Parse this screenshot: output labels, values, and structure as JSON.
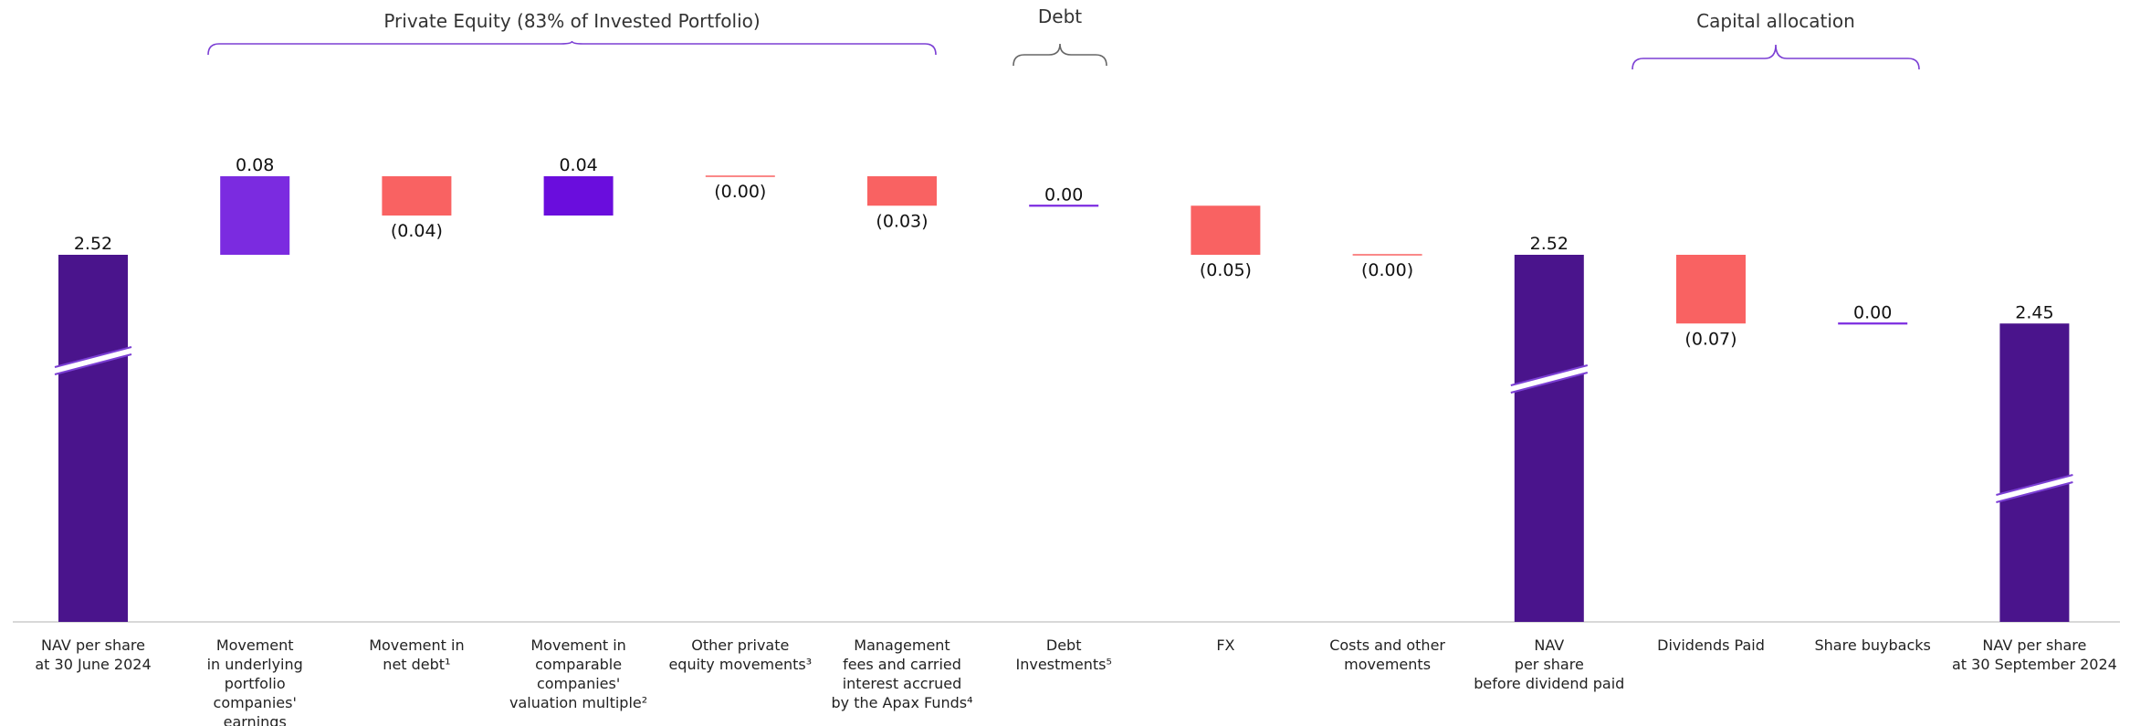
{
  "chart_data": {
    "type": "waterfall",
    "categories": [
      [
        "NAV per share",
        "at 30 June 2024"
      ],
      [
        "Movement",
        "in underlying",
        "portfolio",
        "companies'",
        "earnings"
      ],
      [
        "Movement in",
        "net debt¹"
      ],
      [
        "Movement in",
        "comparable",
        "companies'",
        "valuation multiple²"
      ],
      [
        "Other private",
        "equity movements³"
      ],
      [
        "Management",
        "fees and carried",
        "interest accrued",
        "by the Apax Funds⁴"
      ],
      [
        "Debt",
        "Investments⁵"
      ],
      [
        "FX"
      ],
      [
        "Costs and other",
        "movements"
      ],
      [
        "NAV",
        "per share",
        "before dividend paid"
      ],
      [
        "Dividends Paid"
      ],
      [
        "Share buybacks"
      ],
      [
        "NAV per share",
        "at 30 September 2024"
      ]
    ],
    "kinds": [
      "total",
      "delta",
      "delta",
      "delta",
      "delta",
      "delta",
      "delta",
      "delta",
      "delta",
      "total",
      "delta",
      "delta",
      "total"
    ],
    "values": [
      2.52,
      0.08,
      -0.04,
      0.04,
      -0.0,
      -0.03,
      0.0,
      -0.05,
      -0.0,
      2.52,
      -0.07,
      0.0,
      2.45
    ],
    "labels": [
      "2.52",
      "0.08",
      "(0.04)",
      "0.04",
      "(0.00)",
      "(0.03)",
      "0.00",
      "(0.05)",
      "(0.00)",
      "2.52",
      "(0.07)",
      "0.00",
      "2.45"
    ],
    "groups": [
      {
        "label": "Private Equity (83% of Invested Portfolio)",
        "from": 1,
        "to": 5
      },
      {
        "label": "Debt",
        "from": 6,
        "to": 6
      },
      {
        "label": "Capital allocation",
        "from": 10,
        "to": 11
      }
    ],
    "axis_break": true,
    "colors": {
      "total": "#4a148c",
      "earnings": "#7b2be0",
      "multiple": "#6a0ddd",
      "negative": "#f96262",
      "zero_positive": "#7b2be0",
      "zero_negative": "#f96262",
      "brace": "#7b3fd4",
      "brace_debt": "#666666"
    }
  }
}
